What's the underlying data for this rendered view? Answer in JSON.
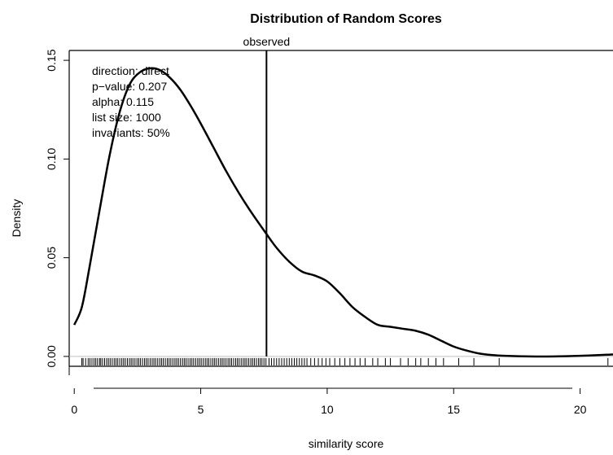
{
  "chart_data": {
    "type": "line",
    "title": "Distribution of Random Scores",
    "xlabel": "similarity score",
    "ylabel": "Density",
    "xlim": [
      -0.2,
      21.3
    ],
    "ylim": [
      -0.005,
      0.155
    ],
    "x_ticks": [
      0,
      5,
      10,
      15,
      20
    ],
    "x_tick_labels": [
      "0",
      "5",
      "10",
      "15",
      "20"
    ],
    "y_ticks": [
      0.0,
      0.05,
      0.1,
      0.15
    ],
    "y_tick_labels": [
      "0.00",
      "0.05",
      "0.10",
      "0.15"
    ],
    "grid": false,
    "series": [
      {
        "x": [
          0,
          0.3,
          0.6,
          1.0,
          1.4,
          1.8,
          2.2,
          2.6,
          3.0,
          3.4,
          3.8,
          4.2,
          4.6,
          5.0,
          5.5,
          6.0,
          6.5,
          7.0,
          7.6,
          8.0,
          8.5,
          9.0,
          9.5,
          10.0,
          10.5,
          11.0,
          11.5,
          12.0,
          12.5,
          13.0,
          13.5,
          14.0,
          14.5,
          15.0,
          15.5,
          16.0,
          16.5,
          17.0,
          18.0,
          19.0,
          20.0,
          21.0,
          21.3
        ],
        "y": [
          0.016,
          0.025,
          0.045,
          0.074,
          0.102,
          0.124,
          0.138,
          0.144,
          0.146,
          0.145,
          0.141,
          0.135,
          0.127,
          0.118,
          0.106,
          0.094,
          0.083,
          0.073,
          0.062,
          0.055,
          0.048,
          0.043,
          0.041,
          0.038,
          0.032,
          0.025,
          0.02,
          0.016,
          0.015,
          0.014,
          0.013,
          0.011,
          0.008,
          0.005,
          0.003,
          0.0015,
          0.0007,
          0.0003,
          0.0,
          0.0,
          0.0003,
          0.0008,
          0.001
        ]
      }
    ],
    "observed": {
      "label": "observed",
      "x": 7.6
    },
    "annotations": [
      "direction: direct",
      "p−value: 0.207",
      "alpha: 0.115",
      "list size: 1000",
      "invariants: 50%"
    ],
    "rug": [
      0.3,
      0.35,
      0.45,
      0.55,
      0.62,
      0.7,
      0.78,
      0.85,
      0.92,
      1.0,
      1.05,
      1.12,
      1.2,
      1.28,
      1.35,
      1.42,
      1.5,
      1.58,
      1.65,
      1.72,
      1.8,
      1.88,
      1.95,
      2.02,
      2.1,
      2.18,
      2.25,
      2.32,
      2.4,
      2.48,
      2.55,
      2.62,
      2.7,
      2.78,
      2.85,
      2.92,
      3.0,
      3.08,
      3.15,
      3.22,
      3.3,
      3.38,
      3.45,
      3.52,
      3.6,
      3.68,
      3.75,
      3.82,
      3.9,
      3.98,
      4.05,
      4.12,
      4.2,
      4.28,
      4.35,
      4.42,
      4.5,
      4.58,
      4.65,
      4.72,
      4.8,
      4.88,
      4.95,
      5.02,
      5.1,
      5.18,
      5.25,
      5.32,
      5.4,
      5.48,
      5.55,
      5.62,
      5.7,
      5.78,
      5.85,
      5.92,
      6.0,
      6.08,
      6.15,
      6.22,
      6.3,
      6.38,
      6.45,
      6.52,
      6.6,
      6.68,
      6.75,
      6.82,
      6.9,
      6.98,
      7.05,
      7.12,
      7.2,
      7.28,
      7.35,
      7.42,
      7.5,
      7.58,
      7.7,
      7.8,
      7.9,
      8.0,
      8.1,
      8.2,
      8.3,
      8.4,
      8.5,
      8.6,
      8.7,
      8.8,
      8.9,
      9.0,
      9.1,
      9.2,
      9.35,
      9.5,
      9.65,
      9.8,
      9.95,
      10.1,
      10.3,
      10.5,
      10.7,
      10.9,
      11.1,
      11.3,
      11.5,
      11.8,
      12.0,
      12.3,
      12.5,
      12.9,
      13.2,
      13.5,
      13.7,
      14.0,
      14.3,
      14.6,
      15.2,
      15.8,
      16.8,
      21.1
    ]
  }
}
